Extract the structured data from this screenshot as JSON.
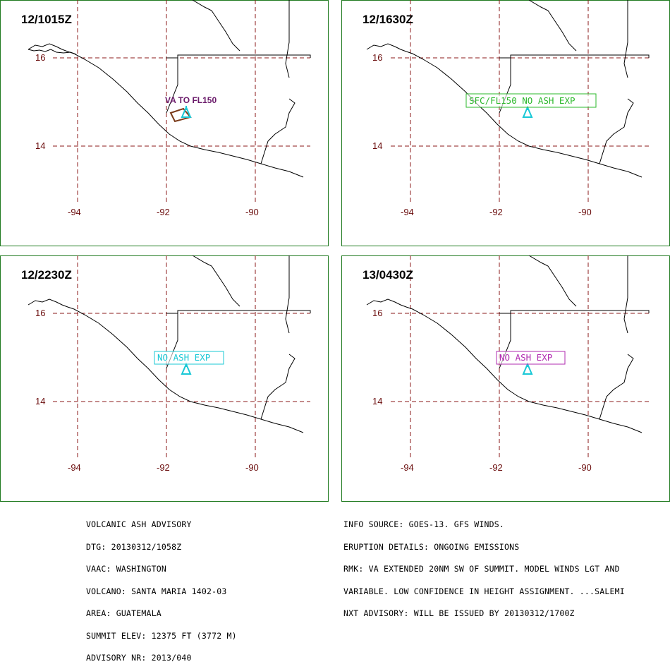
{
  "panels": [
    {
      "time": "12/1015Z",
      "label": "VA TO FL150",
      "label_style": "plain",
      "label_color": "#6a1a6a",
      "ash_polygon": true
    },
    {
      "time": "12/1630Z",
      "label": "SFC/FL150 NO ASH EXP",
      "label_style": "box",
      "label_color": "#2bb82b",
      "ash_polygon": false
    },
    {
      "time": "12/2230Z",
      "label": "NO ASH EXP",
      "label_style": "box",
      "label_color": "#19c8d6",
      "ash_polygon": false
    },
    {
      "time": "13/0430Z",
      "label": "NO ASH EXP",
      "label_style": "box",
      "label_color": "#b02bb0",
      "ash_polygon": false
    }
  ],
  "map": {
    "lat_labels": [
      "16",
      "14"
    ],
    "lon_labels": [
      "-94",
      "-92",
      "-90"
    ],
    "grid_color": "#8b1a1a",
    "frame_color": "#1f7a1f",
    "volcano_color": "#19c8d6",
    "ash_color": "#7a3b1a",
    "volcano_icon": "volcano-triangle-icon"
  },
  "footer_left": [
    "VOLCANIC ASH ADVISORY",
    "DTG: 20130312/1058Z",
    "VAAC: WASHINGTON",
    "VOLCANO: SANTA MARIA 1402-03",
    "AREA: GUATEMALA",
    "SUMMIT ELEV: 12375 FT (3772 M)",
    "ADVISORY NR: 2013/040"
  ],
  "footer_right": [
    "INFO SOURCE: GOES-13. GFS WINDS.",
    "ERUPTION DETAILS: ONGOING EMISSIONS",
    "RMK: VA EXTENDED 20NM SW OF SUMMIT. MODEL WINDS LGT AND",
    "VARIABLE. LOW CONFIDENCE IN HEIGHT ASSIGNMENT. ...SALEMI",
    "NXT ADVISORY: WILL BE ISSUED BY 20130312/1700Z"
  ]
}
